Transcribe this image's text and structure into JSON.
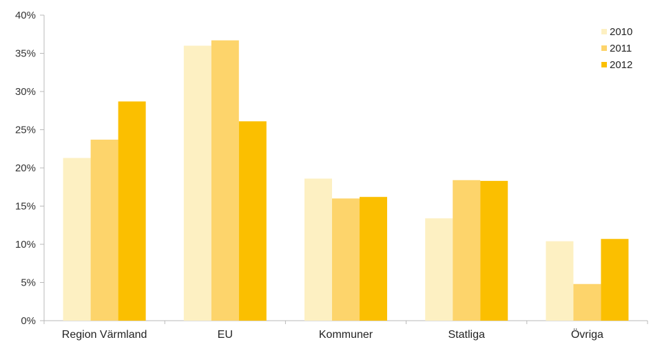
{
  "chart_data": {
    "type": "bar",
    "categories": [
      "Region Värmland",
      "EU",
      "Kommuner",
      "Statliga",
      "Övriga"
    ],
    "series": [
      {
        "name": "2010",
        "values": [
          21.3,
          36.0,
          18.6,
          13.4,
          10.4
        ],
        "color": "#fdf0c2"
      },
      {
        "name": "2011",
        "values": [
          23.7,
          36.7,
          16.0,
          18.4,
          4.8
        ],
        "color": "#fdd46b"
      },
      {
        "name": "2012",
        "values": [
          28.7,
          26.1,
          16.2,
          18.3,
          10.7
        ],
        "color": "#fbbf00"
      }
    ],
    "ylim": [
      0,
      40
    ],
    "yticks": [
      0,
      5,
      10,
      15,
      20,
      25,
      30,
      35,
      40
    ],
    "ytick_labels": [
      "0%",
      "5%",
      "10%",
      "15%",
      "20%",
      "25%",
      "30%",
      "35%",
      "40%"
    ],
    "title": "",
    "xlabel": "",
    "ylabel": "",
    "grid": false,
    "legend_position": "top-right"
  }
}
